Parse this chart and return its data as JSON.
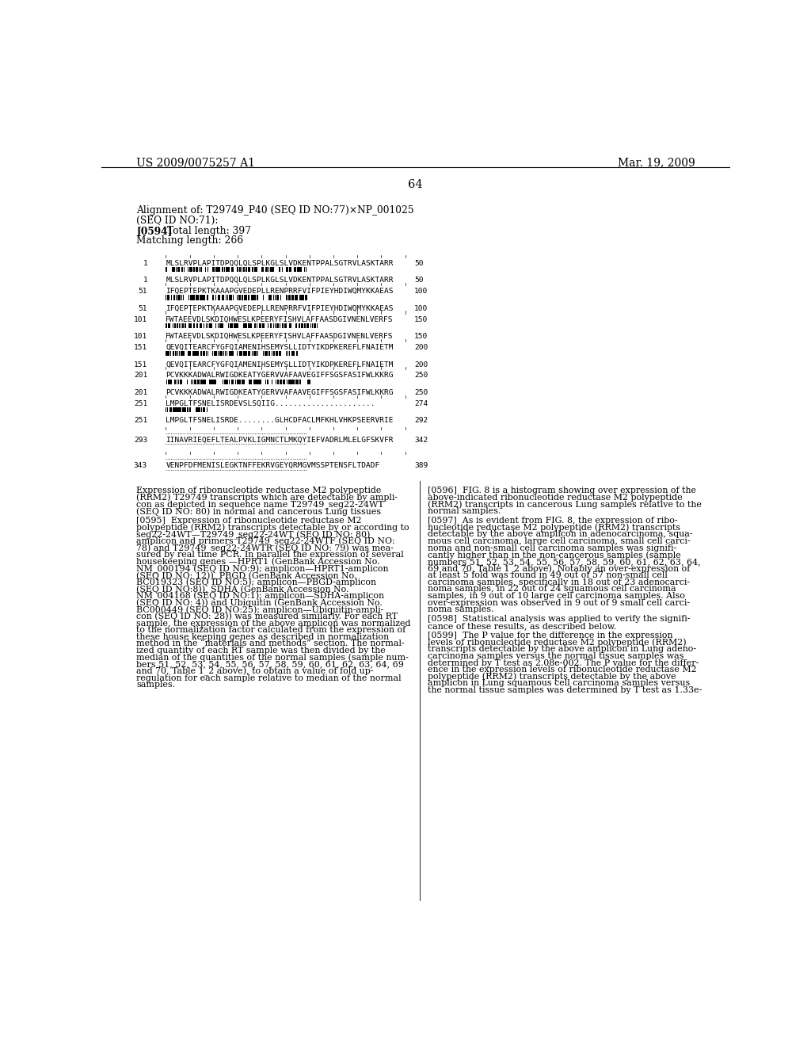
{
  "page_number": "64",
  "header_left": "US 2009/0075257 A1",
  "header_right": "Mar. 19, 2009",
  "bg_color": "#ffffff"
}
